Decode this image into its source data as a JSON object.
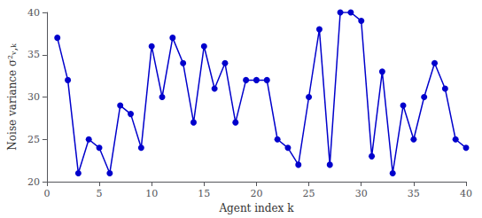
{
  "chart_data": {
    "type": "line",
    "xlabel": "Agent index k",
    "ylabel": "Noise variance σ²ᵥ,ₖ",
    "x": [
      1,
      2,
      3,
      4,
      5,
      6,
      7,
      8,
      9,
      10,
      11,
      12,
      13,
      14,
      15,
      16,
      17,
      18,
      19,
      20,
      21,
      22,
      23,
      24,
      25,
      26,
      27,
      28,
      29,
      30,
      31,
      32,
      33,
      34,
      35,
      36,
      37,
      38,
      39,
      40
    ],
    "values": [
      37,
      32,
      21,
      25,
      24,
      21,
      29,
      28,
      24,
      36,
      30,
      37,
      34,
      27,
      36,
      31,
      34,
      27,
      32,
      32,
      32,
      25,
      24,
      22,
      30,
      38,
      22,
      40,
      40,
      39,
      23,
      33,
      21,
      29,
      25,
      30,
      34,
      31,
      25,
      24
    ],
    "color": "#0000cc",
    "marker": "circle",
    "xlim": [
      0,
      40
    ],
    "ylim": [
      20,
      40
    ],
    "xticks": [
      0,
      5,
      10,
      15,
      20,
      25,
      30,
      35,
      40
    ],
    "yticks": [
      20,
      25,
      30,
      35,
      40
    ],
    "grid": false
  }
}
